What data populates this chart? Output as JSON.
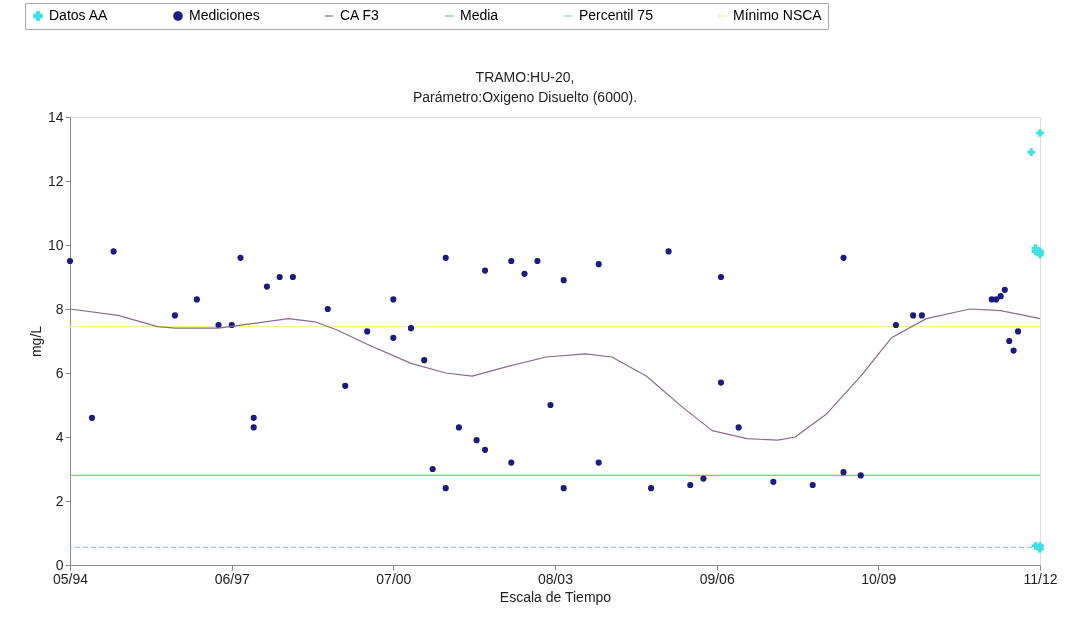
{
  "chart_data": {
    "type": "scatter",
    "title": "TRAMO:HU-20,",
    "subtitle": " Parámetro:Oxigeno Disuelto  (6000).",
    "xlabel": "Escala de Tiempo",
    "ylabel": "mg/L",
    "xlim": [
      "1994-05",
      "2012-11"
    ],
    "xticks": [
      {
        "value": "1994-05",
        "label": "05/94"
      },
      {
        "value": "1997-06",
        "label": "06/97"
      },
      {
        "value": "2000-07",
        "label": "07/00"
      },
      {
        "value": "2003-08",
        "label": "08/03"
      },
      {
        "value": "2006-09",
        "label": "09/06"
      },
      {
        "value": "2009-10",
        "label": "10/09"
      },
      {
        "value": "2012-11",
        "label": "11/12"
      }
    ],
    "ylim": [
      0,
      14
    ],
    "yticks": [
      0,
      2,
      4,
      6,
      8,
      10,
      12,
      14
    ],
    "grid": false,
    "legend": "top",
    "series": [
      {
        "name": "Datos AA",
        "marker": "cross",
        "color": "#40e0e0",
        "x": [
          "2012-11",
          "2012-09",
          "2012-10",
          "2012-11",
          "2012-10",
          "2012-11",
          "2012-10",
          "2012-11",
          "2012-11"
        ],
        "values": [
          13.5,
          12.9,
          9.9,
          9.8,
          9.8,
          9.7,
          0.6,
          0.6,
          0.5
        ]
      },
      {
        "name": "Mediciones",
        "marker": "circle",
        "color": "#1a1a80",
        "x": [
          "1994-05",
          "1994-10",
          "1995-03",
          "1996-05",
          "1996-10",
          "1997-03",
          "1997-06",
          "1997-08",
          "1997-11",
          "1997-11",
          "1998-02",
          "1998-05",
          "1998-08",
          "1999-04",
          "1999-08",
          "2000-01",
          "2000-07",
          "2000-07",
          "2000-11",
          "2001-02",
          "2001-04",
          "2001-07",
          "2001-07",
          "2001-10",
          "2002-02",
          "2002-04",
          "2002-04",
          "2002-10",
          "2002-10",
          "2003-01",
          "2003-04",
          "2003-07",
          "2003-10",
          "2003-10",
          "2004-06",
          "2004-06",
          "2005-06",
          "2005-10",
          "2006-03",
          "2006-06",
          "2006-10",
          "2006-10",
          "2007-02",
          "2007-10",
          "2008-07",
          "2009-02",
          "2009-02",
          "2009-06",
          "2010-02",
          "2010-06",
          "2010-08",
          "2011-12",
          "2012-01",
          "2012-02",
          "2012-03",
          "2012-04",
          "2012-05",
          "2012-06"
        ],
        "values": [
          9.5,
          4.6,
          9.8,
          7.8,
          8.3,
          7.5,
          7.5,
          9.6,
          4.6,
          4.3,
          8.7,
          9.0,
          9.0,
          8.0,
          5.6,
          7.3,
          8.3,
          7.1,
          7.4,
          6.4,
          3.0,
          9.6,
          2.4,
          4.3,
          3.9,
          9.2,
          3.6,
          9.5,
          3.2,
          9.1,
          9.5,
          5.0,
          8.9,
          2.4,
          9.4,
          3.2,
          2.4,
          9.8,
          2.5,
          2.7,
          9.0,
          5.7,
          4.3,
          2.6,
          2.5,
          9.6,
          2.9,
          2.8,
          7.5,
          7.8,
          7.8,
          8.3,
          8.3,
          8.4,
          8.6,
          7.0,
          6.7,
          7.3
        ]
      },
      {
        "name": "CA F3",
        "type": "line",
        "color": "#8b6b8b",
        "x": [
          "1994-05",
          "1995-04",
          "1996-01",
          "1996-05",
          "1997-03",
          "1997-11",
          "1998-07",
          "1999-01",
          "1999-06",
          "2000-01",
          "2000-11",
          "2001-07",
          "2002-01",
          "2002-09",
          "2003-06",
          "2004-03",
          "2004-09",
          "2005-05",
          "2006-01",
          "2006-08",
          "2007-04",
          "2007-11",
          "2008-03",
          "2008-10",
          "2009-06",
          "2010-01",
          "2010-09",
          "2011-07",
          "2012-02",
          "2012-11"
        ],
        "values": [
          8.0,
          7.8,
          7.45,
          7.4,
          7.4,
          7.55,
          7.7,
          7.6,
          7.35,
          6.9,
          6.3,
          6.0,
          5.9,
          6.2,
          6.5,
          6.6,
          6.5,
          5.9,
          4.95,
          4.2,
          3.95,
          3.9,
          4.0,
          4.7,
          5.9,
          7.1,
          7.7,
          8.0,
          7.95,
          7.7
        ]
      }
    ],
    "ref_lines": [
      {
        "axis": "y",
        "value": 2.8,
        "label": "Media",
        "color": "#80c880",
        "line_style": "solid"
      },
      {
        "axis": "y",
        "value": 0.55,
        "label": "Percentil 75",
        "color": "#90d0c0",
        "line_style": "dashed"
      },
      {
        "axis": "y",
        "value": 7.45,
        "label": "Mínimo NSCA",
        "color": "#f0f0a0",
        "line_style": "solid"
      }
    ]
  }
}
